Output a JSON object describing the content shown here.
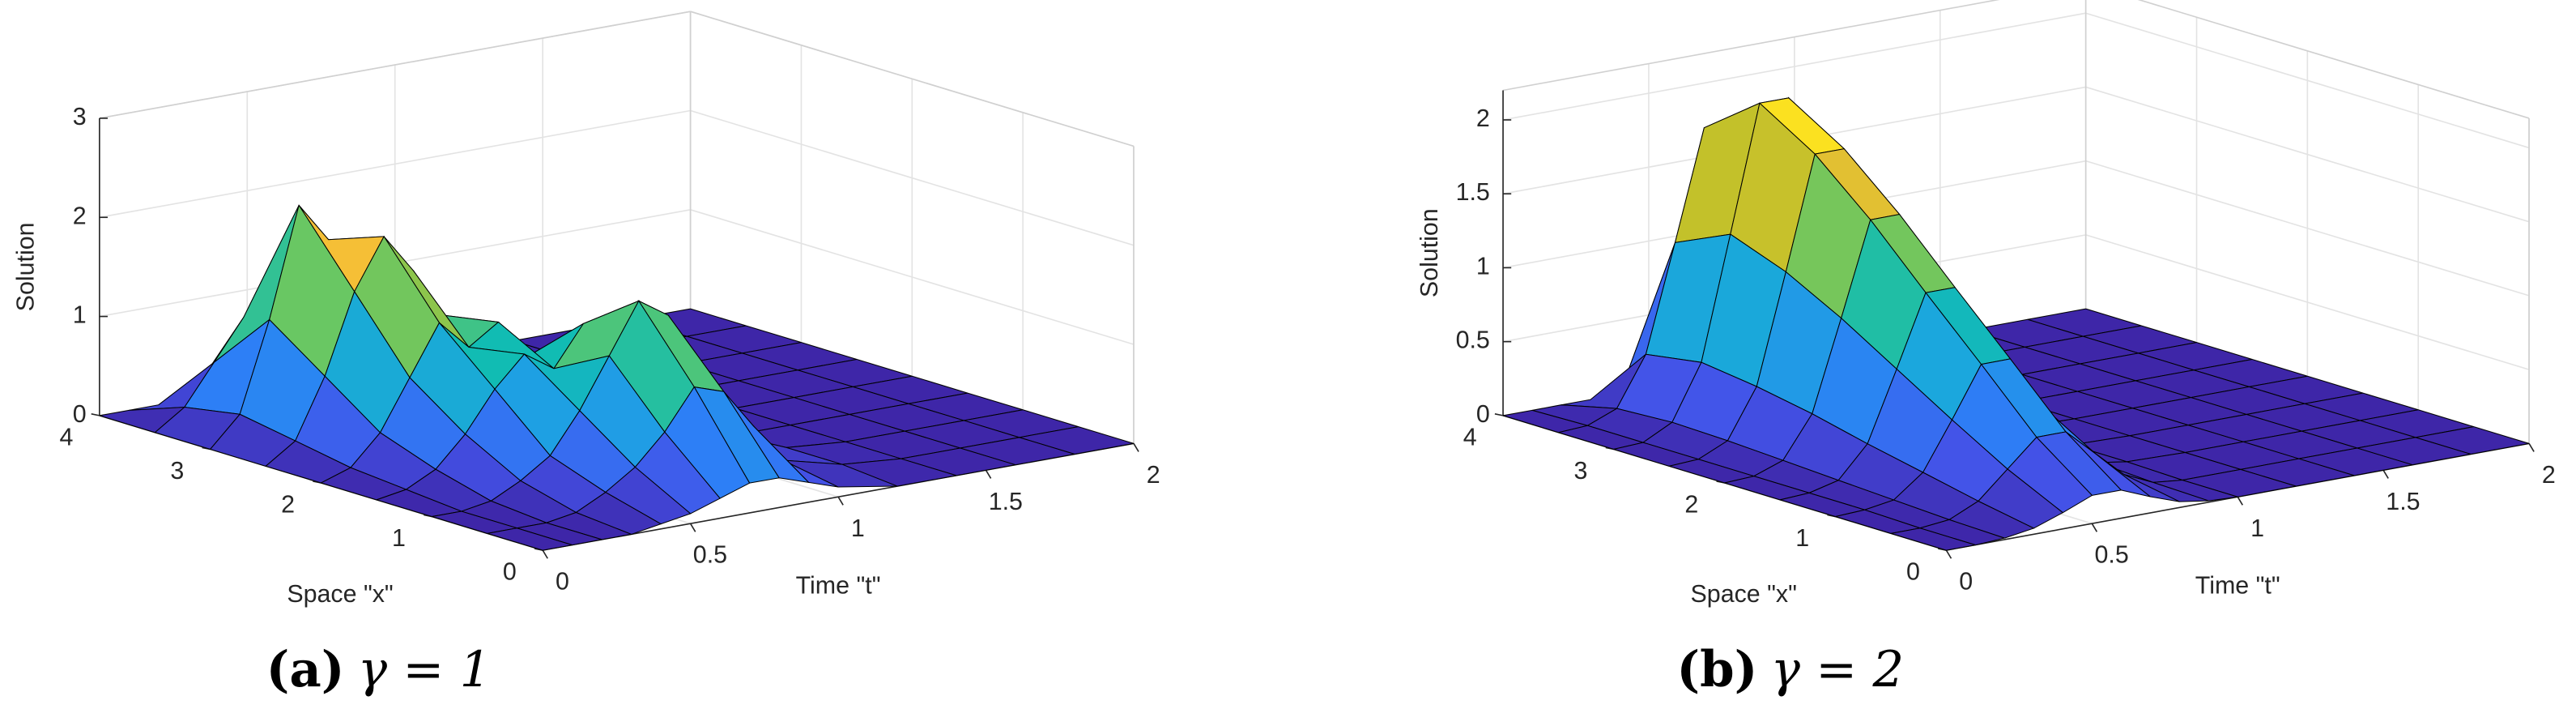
{
  "chart_data": [
    {
      "type": "surface",
      "zlabel": "Solution",
      "ylabel": "Space \"x\"",
      "xlabel": "Time \"t\"",
      "caption_label": "(a)",
      "caption": "γ = 1",
      "grid": true,
      "colormap": [
        "#3e26a8",
        "#4353e8",
        "#2d7ff6",
        "#1ca5e0",
        "#11bcb3",
        "#5cc86b",
        "#c2c12a",
        "#fdbf38",
        "#f9fb0e"
      ],
      "x": [
        0,
        0.1,
        0.2,
        0.3,
        0.4,
        0.5,
        0.6,
        0.7,
        0.8,
        0.9,
        1.0,
        1.2,
        1.4,
        1.6,
        1.8,
        2.0
      ],
      "y": [
        0,
        0.5,
        1,
        1.5,
        2,
        2.5,
        3,
        3.5,
        4
      ],
      "values": [
        [
          0,
          0,
          0,
          0,
          0.05,
          0.1,
          0.2,
          0.3,
          0.3,
          0.2,
          0.1,
          0,
          0,
          0,
          0,
          0
        ],
        [
          0,
          0,
          0,
          0.05,
          0.2,
          0.4,
          0.7,
          1.1,
          1.0,
          0.6,
          0.2,
          0.05,
          0,
          0,
          0,
          0
        ],
        [
          0,
          0,
          0.05,
          0.2,
          0.4,
          0.8,
          1.3,
          1.8,
          1.6,
          0.9,
          0.3,
          0.05,
          0,
          0,
          0,
          0
        ],
        [
          0,
          0.05,
          0.2,
          0.5,
          0.9,
          1.2,
          1.0,
          1.4,
          1.1,
          0.6,
          0.2,
          0,
          0,
          0,
          0,
          0
        ],
        [
          0,
          0.1,
          0.4,
          0.9,
          1.4,
          1.1,
          1.3,
          0.9,
          0.6,
          0.3,
          0.1,
          0,
          0,
          0,
          0,
          0
        ],
        [
          0,
          0.2,
          0.8,
          1.6,
          2.1,
          1.7,
          1.2,
          0.8,
          0.4,
          0.1,
          0,
          0,
          0,
          0,
          0,
          0
        ],
        [
          0,
          0.3,
          1.2,
          2.3,
          1.9,
          1.3,
          0.8,
          0.4,
          0.2,
          0.05,
          0,
          0,
          0,
          0,
          0,
          0
        ],
        [
          0,
          0.2,
          0.6,
          1.0,
          0.8,
          0.5,
          0.3,
          0.1,
          0.05,
          0,
          0,
          0,
          0,
          0,
          0,
          0
        ],
        [
          0,
          0,
          0,
          0,
          0,
          0,
          0,
          0,
          0,
          0,
          0,
          0,
          0,
          0,
          0,
          0
        ]
      ],
      "xlim": [
        0,
        2
      ],
      "ylim": [
        0,
        4
      ],
      "zlim": [
        0,
        3
      ],
      "xticks": [
        0,
        0.5,
        1,
        1.5,
        2
      ],
      "yticks": [
        0,
        1,
        2,
        3,
        4
      ],
      "zticks": [
        0,
        1,
        2,
        3
      ]
    },
    {
      "type": "surface",
      "zlabel": "Solution",
      "ylabel": "Space \"x\"",
      "xlabel": "Time \"t\"",
      "caption_label": "(b)",
      "caption": "γ = 2",
      "grid": true,
      "colormap": [
        "#3e26a8",
        "#4353e8",
        "#2d7ff6",
        "#1ca5e0",
        "#11bcb3",
        "#5cc86b",
        "#c2c12a",
        "#fdbf38",
        "#f9fb0e"
      ],
      "x": [
        0,
        0.1,
        0.2,
        0.3,
        0.4,
        0.5,
        0.6,
        0.7,
        0.8,
        0.9,
        1.0,
        1.2,
        1.4,
        1.6,
        1.8,
        2.0
      ],
      "y": [
        0,
        0.5,
        1,
        1.5,
        2,
        2.5,
        3,
        3.5,
        4
      ],
      "values": [
        [
          0,
          0,
          0.01,
          0.04,
          0.11,
          0.19,
          0.19,
          0.11,
          0.04,
          0.01,
          0,
          0,
          0,
          0,
          0,
          0
        ],
        [
          0,
          0,
          0.02,
          0.11,
          0.29,
          0.47,
          0.47,
          0.29,
          0.11,
          0.02,
          0,
          0,
          0,
          0,
          0,
          0
        ],
        [
          0,
          0.01,
          0.04,
          0.19,
          0.51,
          0.85,
          0.85,
          0.51,
          0.19,
          0.04,
          0.01,
          0,
          0,
          0,
          0,
          0
        ],
        [
          0,
          0.01,
          0.06,
          0.27,
          0.74,
          1.22,
          1.22,
          0.74,
          0.27,
          0.06,
          0.01,
          0,
          0,
          0,
          0,
          0
        ],
        [
          0,
          0.01,
          0.08,
          0.36,
          0.97,
          1.6,
          1.6,
          0.97,
          0.36,
          0.08,
          0.01,
          0,
          0,
          0,
          0,
          0
        ],
        [
          0,
          0.01,
          0.1,
          0.43,
          1.17,
          1.93,
          1.93,
          1.17,
          0.43,
          0.1,
          0.01,
          0,
          0,
          0,
          0,
          0
        ],
        [
          0,
          0.01,
          0.11,
          0.48,
          1.31,
          2.16,
          2.16,
          1.31,
          0.48,
          0.11,
          0.01,
          0,
          0,
          0,
          0,
          0
        ],
        [
          0,
          0.01,
          0.09,
          0.42,
          1.14,
          1.88,
          1.88,
          1.14,
          0.42,
          0.09,
          0.01,
          0,
          0,
          0,
          0,
          0
        ],
        [
          0,
          0,
          0,
          0,
          0,
          0,
          0,
          0,
          0,
          0,
          0,
          0,
          0,
          0,
          0,
          0
        ]
      ],
      "xlim": [
        0,
        2
      ],
      "ylim": [
        0,
        4
      ],
      "zlim": [
        0,
        2.2
      ],
      "xticks": [
        0,
        0.5,
        1,
        1.5,
        2
      ],
      "yticks": [
        0,
        1,
        2,
        3,
        4
      ],
      "zticks": [
        0,
        0.5,
        1,
        1.5,
        2
      ]
    }
  ]
}
